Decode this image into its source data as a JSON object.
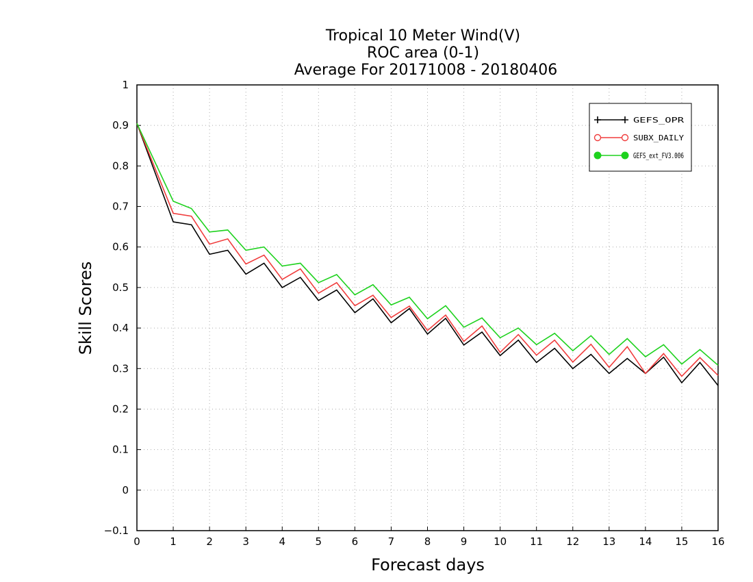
{
  "chart_data": {
    "type": "line",
    "title": [
      "Tropical 10 Meter Wind(V)",
      "ROC area (0-1)",
      "Average For 20171008 - 20180406"
    ],
    "xlabel": "Forecast days",
    "ylabel": "Skill Scores",
    "xlim": [
      0,
      16
    ],
    "ylim": [
      -0.1,
      1
    ],
    "xticks": [
      0,
      1,
      2,
      3,
      4,
      5,
      6,
      7,
      8,
      9,
      10,
      11,
      12,
      13,
      14,
      15,
      16
    ],
    "xtick_labels": [
      "0",
      "1",
      "2",
      "3",
      "4",
      "5",
      "6",
      "7",
      "8",
      "9",
      "10",
      "11",
      "12",
      "13",
      "14",
      "15",
      "16"
    ],
    "yticks": [
      -0.1,
      0,
      0.1,
      0.2,
      0.3,
      0.4,
      0.5,
      0.6,
      0.7,
      0.8,
      0.9,
      1
    ],
    "ytick_labels": [
      "−0.1",
      "0",
      "0.1",
      "0.2",
      "0.3",
      "0.4",
      "0.5",
      "0.6",
      "0.7",
      "0.8",
      "0.9",
      "1"
    ],
    "grid": true,
    "legend_position": "top-right",
    "x": [
      0,
      1,
      1.5,
      2,
      2.5,
      3,
      3.5,
      4,
      4.5,
      5,
      5.5,
      6,
      6.5,
      7,
      7.5,
      8,
      8.5,
      9,
      9.5,
      10,
      10.5,
      11,
      11.5,
      12,
      12.5,
      13,
      13.5,
      14,
      14.5,
      15,
      15.5,
      16
    ],
    "series": [
      {
        "name": "GEFS_OPR",
        "color": "#000000",
        "marker": "plus",
        "values": [
          0.905,
          0.662,
          0.655,
          0.582,
          0.592,
          0.533,
          0.56,
          0.5,
          0.525,
          0.468,
          0.494,
          0.438,
          0.472,
          0.413,
          0.448,
          0.385,
          0.424,
          0.358,
          0.39,
          0.332,
          0.37,
          0.315,
          0.35,
          0.3,
          0.335,
          0.288,
          0.325,
          0.288,
          0.328,
          0.265,
          0.315,
          0.258
        ]
      },
      {
        "name": "SUBX_DAILY",
        "color": "#f03c3c",
        "marker": "open-circle",
        "values": [
          0.905,
          0.683,
          0.676,
          0.607,
          0.62,
          0.558,
          0.58,
          0.52,
          0.546,
          0.486,
          0.512,
          0.455,
          0.481,
          0.426,
          0.454,
          0.394,
          0.432,
          0.367,
          0.405,
          0.34,
          0.384,
          0.333,
          0.37,
          0.316,
          0.36,
          0.303,
          0.354,
          0.288,
          0.337,
          0.281,
          0.327,
          0.283
        ]
      },
      {
        "name": "GEFS_ext_FV3.006",
        "color": "#1ed21e",
        "marker": "filled-circle",
        "values": [
          0.905,
          0.713,
          0.695,
          0.637,
          0.642,
          0.592,
          0.6,
          0.553,
          0.56,
          0.512,
          0.532,
          0.482,
          0.507,
          0.457,
          0.476,
          0.423,
          0.455,
          0.402,
          0.425,
          0.376,
          0.4,
          0.359,
          0.387,
          0.344,
          0.381,
          0.335,
          0.374,
          0.329,
          0.359,
          0.311,
          0.347,
          0.308
        ]
      }
    ]
  }
}
